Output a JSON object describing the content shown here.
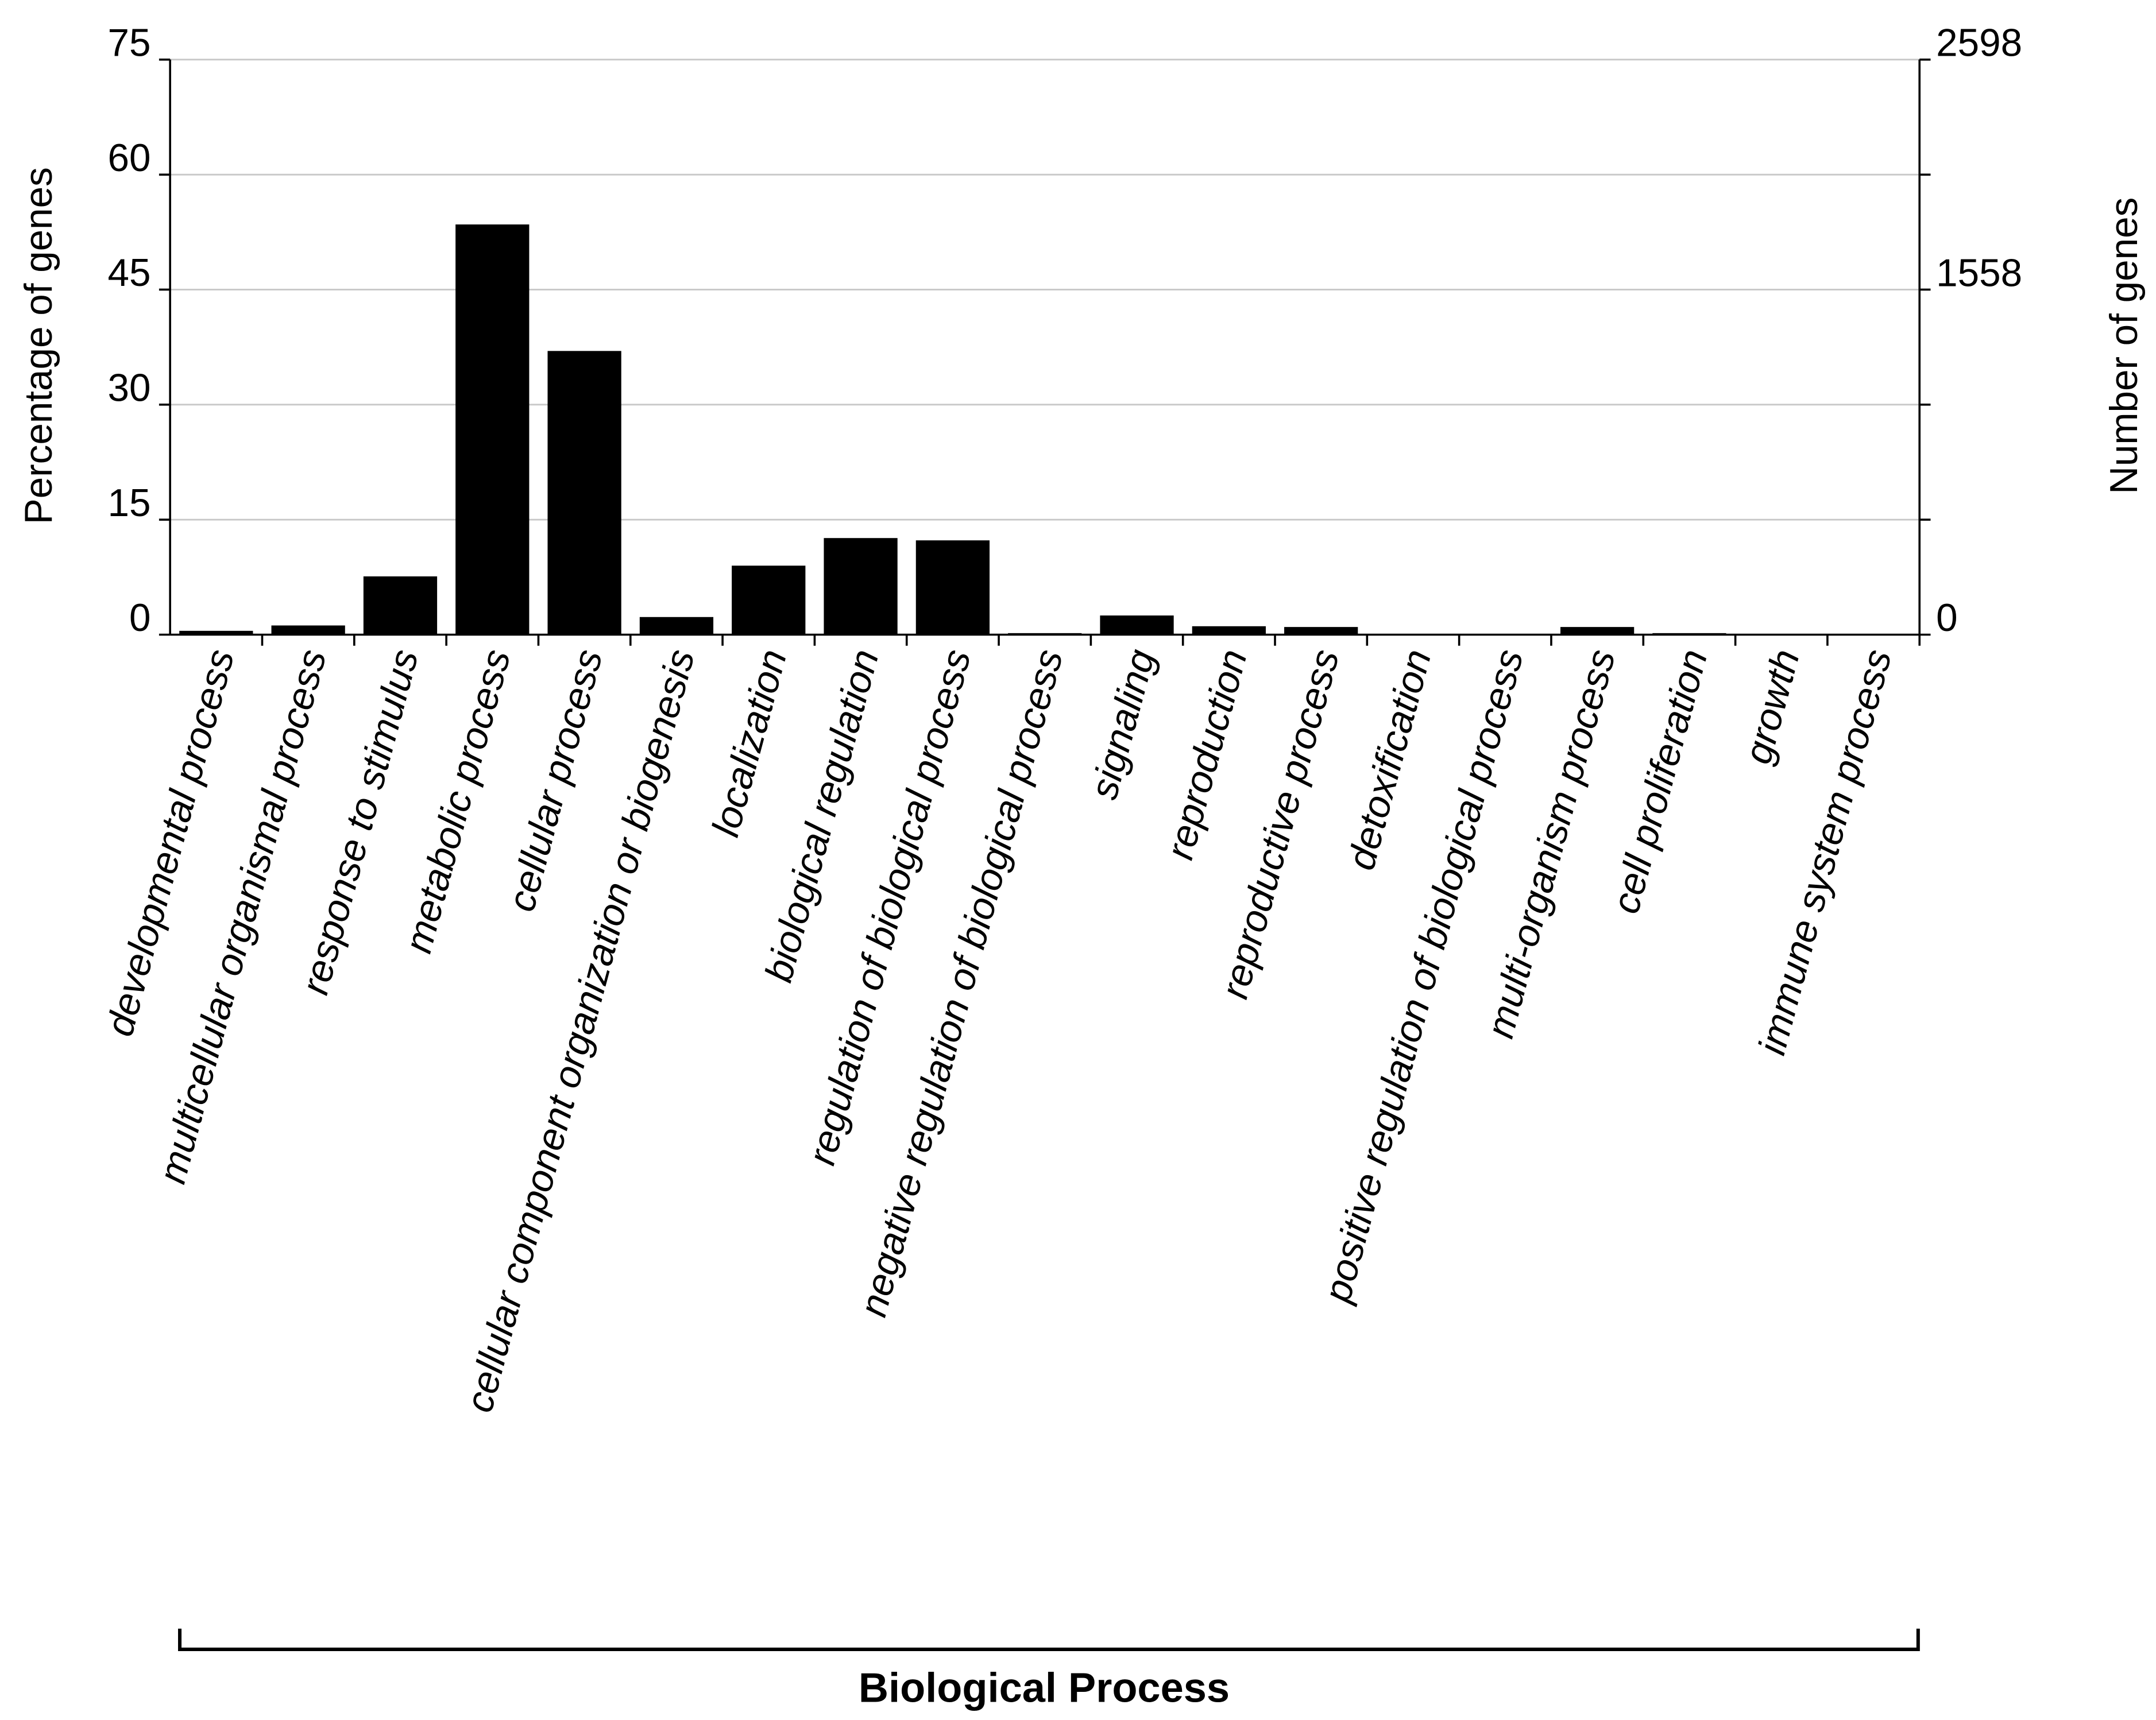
{
  "chart_data": {
    "type": "bar",
    "x_label": "Biological Process",
    "y_label": "Percentage of genes",
    "y2_label": "Number of genes",
    "categories": [
      "developmental process",
      "multicellular organismal process",
      "response to stimulus",
      "metabolic process",
      "cellular process",
      "cellular component organization or biogenesis",
      "localization",
      "biological regulation",
      "regulation of biological process",
      "negative regulation of biological process",
      "signaling",
      "reproduction",
      "reproductive process",
      "detoxification",
      "positive regulation of biological process",
      "multi-organism process",
      "cell proliferation",
      "growth",
      "immune system process"
    ],
    "values": [
      0.5,
      1.2,
      7.6,
      53.5,
      37.0,
      2.3,
      9.0,
      12.6,
      12.3,
      0.2,
      2.5,
      1.1,
      1.0,
      0,
      0.1,
      1.0,
      0.2,
      0.1,
      0.1
    ],
    "color": "#000000",
    "ylim": [
      0,
      75
    ],
    "yticks": [
      0,
      15,
      30,
      45,
      60,
      75
    ],
    "y2lim": [
      0,
      2598
    ],
    "y2ticks": [
      0,
      1558,
      2598
    ],
    "grid": true
  }
}
